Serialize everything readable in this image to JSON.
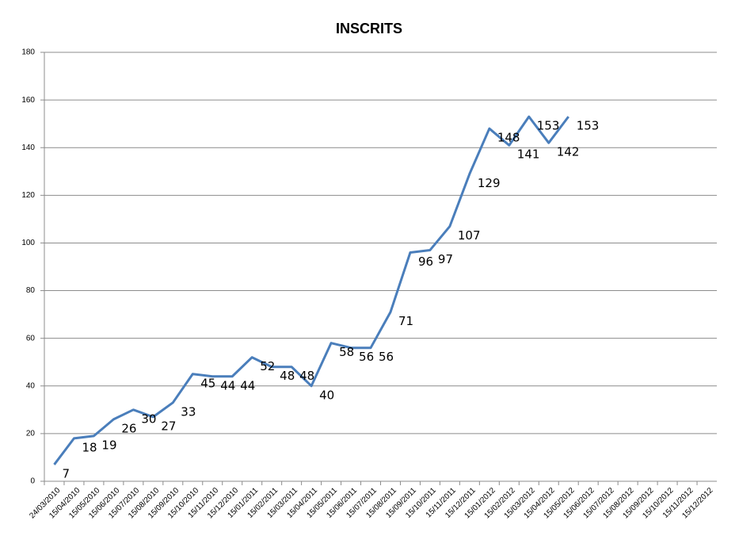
{
  "chart_data": {
    "type": "line",
    "title": "INSCRITS",
    "categories": [
      "24/03/2010",
      "15/04/2010",
      "15/05/2010",
      "15/06/2010",
      "15/07/2010",
      "15/08/2010",
      "15/09/2010",
      "15/10/2010",
      "15/11/2010",
      "15/12/2010",
      "15/01/2011",
      "15/02/2011",
      "15/03/2011",
      "15/04/2011",
      "15/05/2011",
      "15/06/2011",
      "15/07/2011",
      "15/08/2011",
      "15/09/2011",
      "15/10/2011",
      "15/11/2011",
      "15/12/2011",
      "15/01/2012",
      "15/02/2012",
      "15/03/2012",
      "15/04/2012",
      "15/05/2012",
      "15/06/2012",
      "15/07/2012",
      "15/08/2012",
      "15/09/2012",
      "15/10/2012",
      "15/11/2012",
      "15/12/2012"
    ],
    "values": [
      7,
      18,
      19,
      26,
      30,
      27,
      33,
      45,
      44,
      44,
      52,
      48,
      48,
      40,
      58,
      56,
      56,
      71,
      96,
      97,
      107,
      129,
      148,
      141,
      153,
      142,
      153,
      null,
      null,
      null,
      null,
      null,
      null,
      null
    ],
    "color": "#4a7ebb",
    "ylim": [
      0,
      180
    ],
    "yticks": [
      0,
      20,
      40,
      60,
      80,
      100,
      120,
      140,
      160,
      180
    ],
    "grid": true
  }
}
